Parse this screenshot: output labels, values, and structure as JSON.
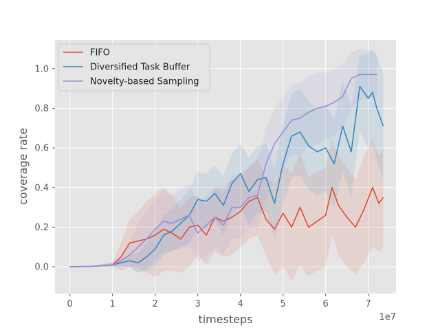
{
  "chart_data": {
    "type": "line",
    "xlabel": "timesteps",
    "ylabel": "coverage rate",
    "x_offset_label": "1e7",
    "xlim": [
      -0.35,
      7.65
    ],
    "ylim": [
      -0.135,
      1.145
    ],
    "x_ticks": [
      0,
      1,
      2,
      3,
      4,
      5,
      6,
      7
    ],
    "y_ticks": [
      0.0,
      0.2,
      0.4,
      0.6,
      0.8,
      1.0
    ],
    "x_tick_labels": [
      "0",
      "1",
      "2",
      "3",
      "4",
      "5",
      "6",
      "7"
    ],
    "y_tick_labels": [
      "0.0",
      "0.2",
      "0.4",
      "0.6",
      "0.8",
      "1.0"
    ],
    "grid": true,
    "legend_position": "upper-left",
    "series": [
      {
        "name": "FIFO",
        "color": "#E24A33",
        "x": [
          0,
          0.5,
          1.0,
          1.2,
          1.4,
          1.6,
          1.8,
          2.0,
          2.2,
          2.4,
          2.6,
          2.8,
          3.0,
          3.2,
          3.4,
          3.6,
          3.8,
          4.0,
          4.2,
          4.4,
          4.6,
          4.8,
          5.0,
          5.2,
          5.4,
          5.6,
          5.8,
          6.0,
          6.15,
          6.3,
          6.5,
          6.7,
          6.9,
          7.1,
          7.25,
          7.35
        ],
        "y": [
          0.0,
          0.002,
          0.01,
          0.05,
          0.12,
          0.13,
          0.14,
          0.16,
          0.19,
          0.17,
          0.14,
          0.2,
          0.21,
          0.16,
          0.25,
          0.23,
          0.25,
          0.28,
          0.33,
          0.35,
          0.24,
          0.19,
          0.27,
          0.2,
          0.3,
          0.2,
          0.23,
          0.26,
          0.4,
          0.31,
          0.25,
          0.2,
          0.29,
          0.4,
          0.32,
          0.35
        ],
        "lower": [
          0.0,
          0.0,
          0.0,
          -0.02,
          0.0,
          0.0,
          -0.03,
          -0.05,
          -0.02,
          -0.02,
          -0.03,
          0.0,
          0.06,
          0.01,
          0.08,
          0.05,
          0.06,
          0.1,
          0.14,
          0.16,
          0.06,
          -0.04,
          0.0,
          -0.07,
          0.01,
          -0.05,
          -0.02,
          0.0,
          0.16,
          0.06,
          0.0,
          -0.04,
          0.02,
          0.1,
          0.08,
          0.1
        ],
        "upper": [
          0.0,
          0.004,
          0.02,
          0.12,
          0.24,
          0.28,
          0.33,
          0.37,
          0.4,
          0.36,
          0.3,
          0.35,
          0.36,
          0.31,
          0.4,
          0.4,
          0.44,
          0.45,
          0.5,
          0.55,
          0.45,
          0.42,
          0.52,
          0.47,
          0.58,
          0.45,
          0.48,
          0.5,
          0.64,
          0.56,
          0.5,
          0.44,
          0.56,
          0.64,
          0.56,
          0.6
        ]
      },
      {
        "name": "Diversified Task Buffer",
        "color": "#348ABD",
        "x": [
          0,
          0.5,
          1.0,
          1.2,
          1.4,
          1.6,
          1.8,
          2.0,
          2.2,
          2.4,
          2.6,
          2.8,
          3.0,
          3.2,
          3.4,
          3.6,
          3.8,
          4.0,
          4.2,
          4.4,
          4.6,
          4.8,
          5.0,
          5.2,
          5.4,
          5.6,
          5.8,
          6.0,
          6.2,
          6.4,
          6.6,
          6.8,
          7.0,
          7.1,
          7.2,
          7.35
        ],
        "y": [
          0.0,
          0.002,
          0.01,
          0.02,
          0.03,
          0.02,
          0.05,
          0.09,
          0.16,
          0.18,
          0.22,
          0.26,
          0.34,
          0.33,
          0.37,
          0.31,
          0.42,
          0.47,
          0.38,
          0.44,
          0.45,
          0.32,
          0.52,
          0.66,
          0.68,
          0.61,
          0.58,
          0.6,
          0.52,
          0.71,
          0.58,
          0.91,
          0.85,
          0.88,
          0.8,
          0.71
        ],
        "lower": [
          0.0,
          0.0,
          0.0,
          0.0,
          0.0,
          -0.03,
          -0.02,
          0.0,
          0.06,
          0.08,
          0.1,
          0.12,
          0.2,
          0.19,
          0.23,
          0.16,
          0.27,
          0.31,
          0.21,
          0.27,
          0.28,
          0.14,
          0.32,
          0.45,
          0.46,
          0.39,
          0.36,
          0.38,
          0.3,
          0.48,
          0.35,
          0.68,
          0.6,
          0.62,
          0.54,
          0.44
        ],
        "upper": [
          0.0,
          0.004,
          0.02,
          0.04,
          0.06,
          0.07,
          0.12,
          0.18,
          0.26,
          0.29,
          0.34,
          0.39,
          0.48,
          0.47,
          0.51,
          0.46,
          0.57,
          0.62,
          0.55,
          0.61,
          0.62,
          0.5,
          0.72,
          0.87,
          0.9,
          0.83,
          0.8,
          0.82,
          0.74,
          0.94,
          0.81,
          1.06,
          1.08,
          1.1,
          1.06,
          0.98
        ]
      },
      {
        "name": "Novelty-based Sampling",
        "color": "#988ED5",
        "x": [
          0,
          0.5,
          1.0,
          1.2,
          1.4,
          1.6,
          1.8,
          2.0,
          2.2,
          2.4,
          2.6,
          2.8,
          3.0,
          3.2,
          3.4,
          3.6,
          3.8,
          4.0,
          4.2,
          4.4,
          4.6,
          4.8,
          5.0,
          5.2,
          5.4,
          5.6,
          5.8,
          6.0,
          6.2,
          6.4,
          6.6,
          6.8,
          7.0,
          7.2
        ],
        "y": [
          0.0,
          0.002,
          0.01,
          0.03,
          0.06,
          0.1,
          0.14,
          0.19,
          0.23,
          0.22,
          0.24,
          0.26,
          0.17,
          0.21,
          0.25,
          0.21,
          0.3,
          0.3,
          0.35,
          0.36,
          0.52,
          0.62,
          0.68,
          0.74,
          0.75,
          0.78,
          0.8,
          0.81,
          0.83,
          0.86,
          0.95,
          0.97,
          0.97,
          0.97
        ],
        "lower": [
          0.0,
          0.0,
          0.0,
          0.0,
          0.0,
          -0.03,
          -0.01,
          0.03,
          0.08,
          0.08,
          0.09,
          0.1,
          0.03,
          0.06,
          0.1,
          0.06,
          0.14,
          0.14,
          0.19,
          0.2,
          0.34,
          0.44,
          0.5,
          0.56,
          0.57,
          0.6,
          0.62,
          0.64,
          0.66,
          0.7,
          0.8,
          0.84,
          0.85,
          0.86
        ],
        "upper": [
          0.0,
          0.004,
          0.02,
          0.06,
          0.12,
          0.22,
          0.28,
          0.34,
          0.38,
          0.36,
          0.39,
          0.42,
          0.32,
          0.36,
          0.4,
          0.37,
          0.46,
          0.47,
          0.51,
          0.53,
          0.7,
          0.8,
          0.86,
          0.92,
          0.93,
          0.96,
          0.98,
          0.98,
          1.0,
          1.02,
          1.08,
          1.1,
          1.09,
          1.08
        ]
      }
    ]
  }
}
